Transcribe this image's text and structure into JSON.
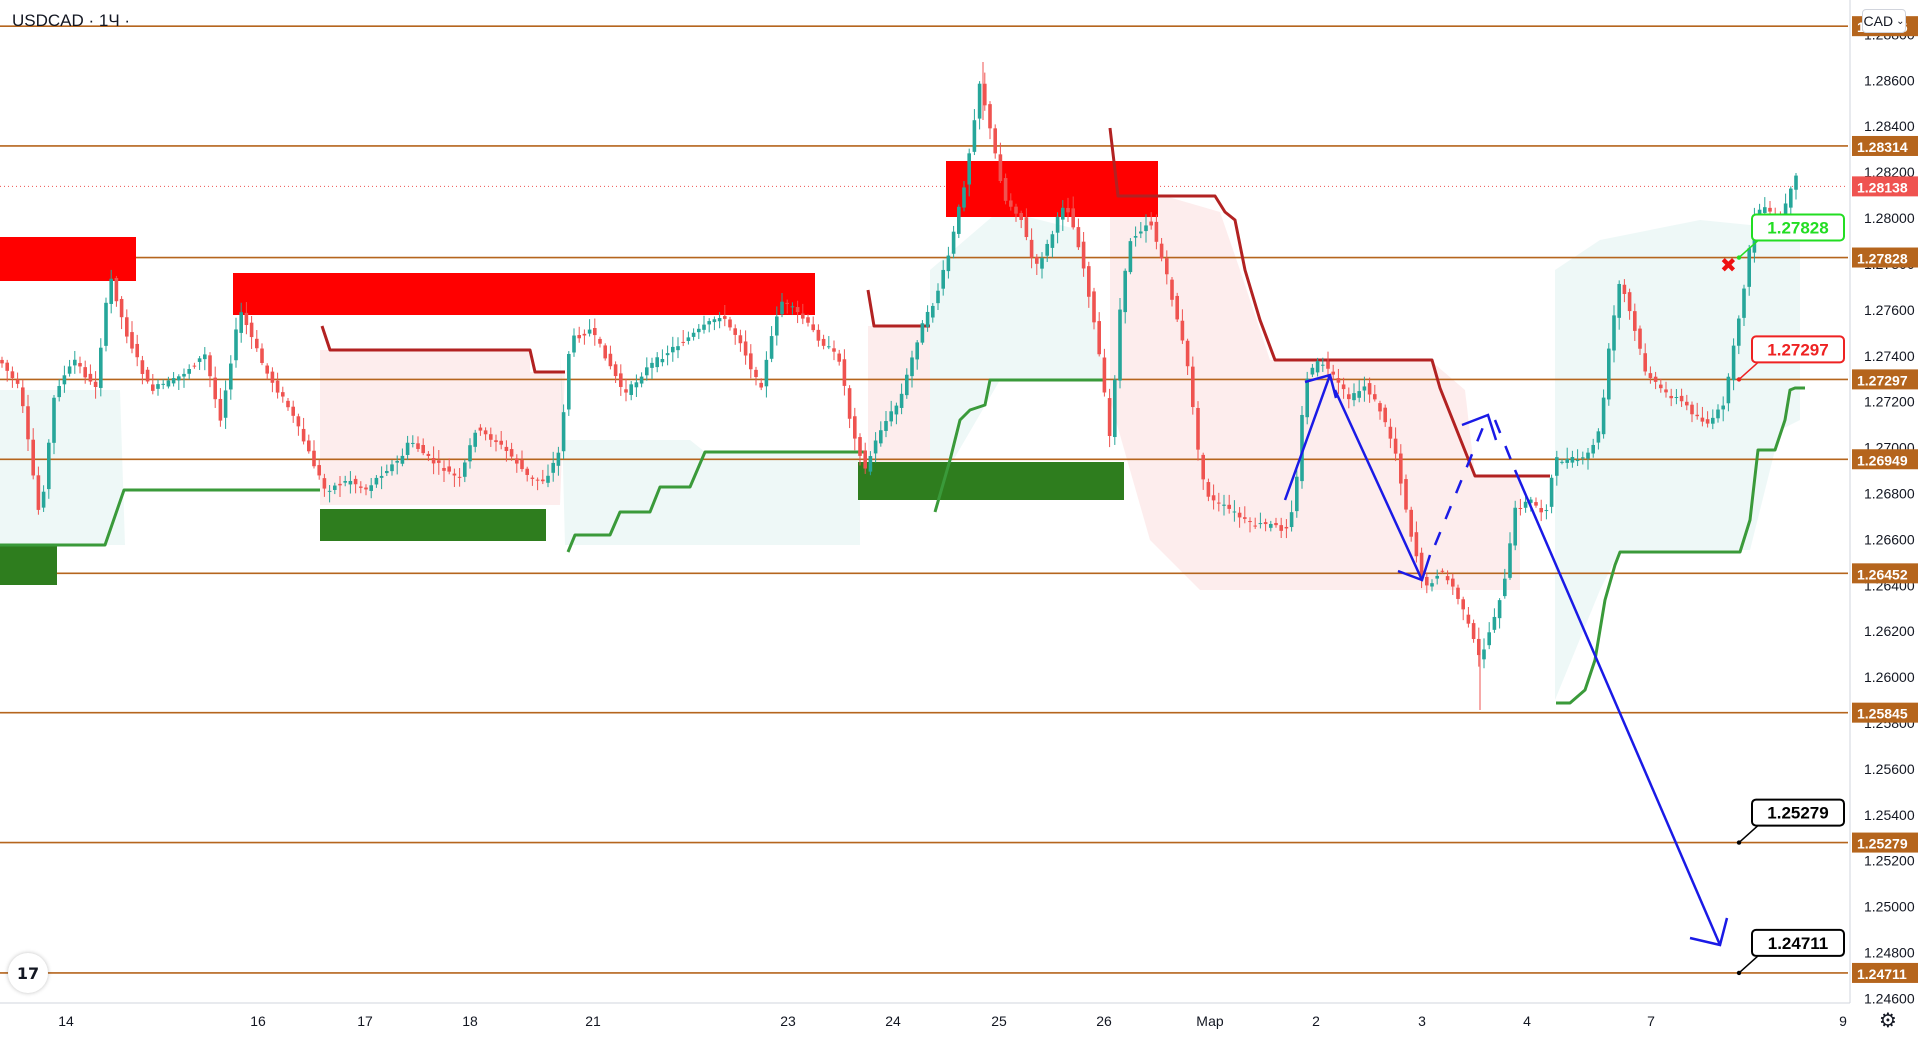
{
  "header": {
    "symbol": "USDCAD · 1Ч ·"
  },
  "currency_button": {
    "label": "CAD",
    "icon": "chevron-down-icon"
  },
  "logo": {
    "text": "17"
  },
  "settings": {
    "icon": "gear-icon"
  },
  "chart_data": {
    "type": "candlestick",
    "ylim": [
      1.2458,
      1.2895
    ],
    "y_ticks": [
      "1.24600",
      "1.24800",
      "1.25000",
      "1.25200",
      "1.25400",
      "1.25600",
      "1.25800",
      "1.26000",
      "1.26200",
      "1.26400",
      "1.26600",
      "1.26800",
      "1.27000",
      "1.27200",
      "1.27400",
      "1.27600",
      "1.27800",
      "1.28000",
      "1.28200",
      "1.28400",
      "1.28600",
      "1.28800"
    ],
    "x_labels": [
      "14",
      "16",
      "17",
      "18",
      "21",
      "23",
      "24",
      "25",
      "26",
      "Мар",
      "2",
      "3",
      "4",
      "7",
      "9"
    ],
    "price_levels": [
      {
        "value": 1.28836,
        "label": "1.28836",
        "color": "#b5651d"
      },
      {
        "value": 1.28314,
        "label": "1.28314",
        "color": "#b5651d"
      },
      {
        "value": 1.27828,
        "label": "1.27828",
        "color": "#b5651d"
      },
      {
        "value": 1.27297,
        "label": "1.27297",
        "color": "#b5651d"
      },
      {
        "value": 1.26949,
        "label": "1.26949",
        "color": "#b5651d"
      },
      {
        "value": 1.26452,
        "label": "1.26452",
        "color": "#b5651d"
      },
      {
        "value": 1.25845,
        "label": "1.25845",
        "color": "#b5651d"
      },
      {
        "value": 1.25279,
        "label": "1.25279",
        "color": "#b5651d"
      },
      {
        "value": 1.24711,
        "label": "1.24711",
        "color": "#b5651d"
      }
    ],
    "current_price": {
      "value": 1.28138,
      "label": "1.28138",
      "color": "#ef5350"
    },
    "callouts": [
      {
        "label": "1.27828",
        "value": 1.27828,
        "color": "#22dd22"
      },
      {
        "label": "1.27297",
        "value": 1.27297,
        "color": "#ee2222"
      },
      {
        "label": "1.25279",
        "value": 1.25279,
        "color": "#000000"
      },
      {
        "label": "1.24711",
        "value": 1.24711,
        "color": "#000000"
      }
    ],
    "colors": {
      "up": "#26a69a",
      "down": "#ef5350",
      "supply": "#ff0000",
      "demand": "#2e7d1e",
      "resist_line": "#b22222",
      "support_line": "#3a9a3a",
      "projection": "#1a1ae6"
    }
  }
}
